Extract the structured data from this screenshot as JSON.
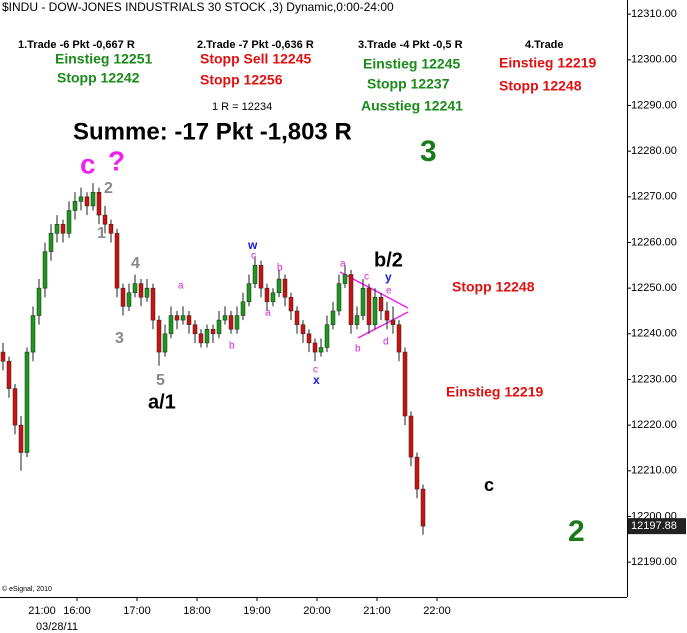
{
  "chart_data": {
    "type": "candlestick",
    "title": "$INDU - DOW-JONES INDUSTRIALS 30 STOCK ,3) Dynamic,0:00-24:00",
    "copyright": "© eSignal, 2010",
    "date_label": "03/28/11",
    "prev_day_label": "21:00",
    "up_color": "#1a9a1a",
    "down_color": "#cc1111",
    "xlim": [
      -17,
      610
    ],
    "ylim": [
      12182.8,
      12313.1
    ],
    "xticks": [
      {
        "value": 60,
        "label": "16:00"
      },
      {
        "value": 120,
        "label": "17:00"
      },
      {
        "value": 180,
        "label": "18:00"
      },
      {
        "value": 240,
        "label": "19:00"
      },
      {
        "value": 300,
        "label": "20:00"
      },
      {
        "value": 360,
        "label": "21:00"
      },
      {
        "value": 420,
        "label": "22:00"
      }
    ],
    "yticks": [
      {
        "value": 12190,
        "label": "12190.00"
      },
      {
        "value": 12200,
        "label": "12200.00"
      },
      {
        "value": 12210,
        "label": "12210.00"
      },
      {
        "value": 12220,
        "label": "12220.00"
      },
      {
        "value": 12230,
        "label": "12230.00"
      },
      {
        "value": 12240,
        "label": "12240.00"
      },
      {
        "value": 12250,
        "label": "12250.00"
      },
      {
        "value": 12260,
        "label": "12260.00"
      },
      {
        "value": 12270,
        "label": "12270.00"
      },
      {
        "value": 12280,
        "label": "12280.00"
      },
      {
        "value": 12290,
        "label": "12290.00"
      },
      {
        "value": 12300,
        "label": "12300.00"
      },
      {
        "value": 12310,
        "label": "12310.00"
      }
    ],
    "x": [
      -14,
      -8,
      -2,
      4,
      10,
      16,
      22,
      28,
      34,
      40,
      46,
      52,
      58,
      64,
      70,
      76,
      82,
      88,
      94,
      100,
      106,
      112,
      118,
      124,
      130,
      136,
      142,
      148,
      154,
      160,
      166,
      172,
      178,
      184,
      190,
      196,
      202,
      208,
      214,
      220,
      226,
      232,
      238,
      244,
      250,
      256,
      262,
      268,
      274,
      280,
      286,
      292,
      298,
      304,
      310,
      316,
      322,
      328,
      334,
      340,
      346,
      352,
      358,
      364,
      370,
      376,
      382,
      388,
      394,
      400,
      406
    ],
    "ohlc": [
      [
        12236,
        12238,
        12232,
        12234
      ],
      [
        12234,
        12235,
        12226,
        12228
      ],
      [
        12228,
        12229,
        12218,
        12220
      ],
      [
        12220,
        12222,
        12210,
        12214
      ],
      [
        12214,
        12237,
        12213,
        12236
      ],
      [
        12236,
        12246,
        12234,
        12244
      ],
      [
        12244,
        12252,
        12242,
        12250
      ],
      [
        12250,
        12260,
        12248,
        12258
      ],
      [
        12258,
        12264,
        12256,
        12262
      ],
      [
        12262,
        12266,
        12260,
        12264
      ],
      [
        12264,
        12265,
        12260,
        12262
      ],
      [
        12262,
        12269,
        12261,
        12267
      ],
      [
        12267,
        12271,
        12265,
        12269
      ],
      [
        12269,
        12272,
        12267,
        12270
      ],
      [
        12270,
        12271,
        12266,
        12268
      ],
      [
        12268,
        12273,
        12267,
        12271
      ],
      [
        12271,
        12272,
        12264,
        12266
      ],
      [
        12266,
        12268,
        12262,
        12264
      ],
      [
        12264,
        12265,
        12260,
        12262
      ],
      [
        12262,
        12263,
        12248,
        12250
      ],
      [
        12250,
        12251,
        12244,
        12246
      ],
      [
        12246,
        12251,
        12245,
        12249
      ],
      [
        12249,
        12253,
        12248,
        12251
      ],
      [
        12251,
        12252,
        12246,
        12248
      ],
      [
        12248,
        12252,
        12247,
        12250
      ],
      [
        12250,
        12251,
        12241,
        12243
      ],
      [
        12243,
        12244,
        12233,
        12236
      ],
      [
        12236,
        12242,
        12235,
        12240
      ],
      [
        12240,
        12246,
        12239,
        12244
      ],
      [
        12244,
        12245,
        12241,
        12243
      ],
      [
        12243,
        12246,
        12242,
        12244
      ],
      [
        12244,
        12245,
        12240,
        12242
      ],
      [
        12242,
        12243,
        12238,
        12240
      ],
      [
        12240,
        12241,
        12237,
        12238
      ],
      [
        12238,
        12242,
        12237,
        12241
      ],
      [
        12241,
        12242,
        12238,
        12240
      ],
      [
        12240,
        12245,
        12239,
        12243
      ],
      [
        12243,
        12246,
        12242,
        12244
      ],
      [
        12244,
        12245,
        12240,
        12241
      ],
      [
        12241,
        12246,
        12240,
        12244
      ],
      [
        12244,
        12249,
        12243,
        12247
      ],
      [
        12247,
        12253,
        12246,
        12251
      ],
      [
        12251,
        12257,
        12250,
        12255
      ],
      [
        12255,
        12256,
        12248,
        12250
      ],
      [
        12250,
        12251,
        12245,
        12247
      ],
      [
        12247,
        12250,
        12246,
        12249
      ],
      [
        12249,
        12254,
        12248,
        12252
      ],
      [
        12252,
        12253,
        12246,
        12248
      ],
      [
        12248,
        12249,
        12243,
        12245
      ],
      [
        12245,
        12246,
        12240,
        12242
      ],
      [
        12242,
        12243,
        12238,
        12240
      ],
      [
        12240,
        12241,
        12236,
        12238
      ],
      [
        12238,
        12239,
        12234,
        12236
      ],
      [
        12236,
        12239,
        12235,
        12237
      ],
      [
        12237,
        12244,
        12236,
        12242
      ],
      [
        12242,
        12247,
        12241,
        12245
      ],
      [
        12245,
        12253,
        12244,
        12251
      ],
      [
        12251,
        12255,
        12250,
        12253
      ],
      [
        12253,
        12254,
        12240,
        12242
      ],
      [
        12242,
        12246,
        12241,
        12244
      ],
      [
        12244,
        12252,
        12243,
        12250
      ],
      [
        12250,
        12251,
        12240,
        12242
      ],
      [
        12242,
        12250,
        12241,
        12248
      ],
      [
        12248,
        12249,
        12243,
        12245
      ],
      [
        12245,
        12247,
        12241,
        12243
      ],
      [
        12243,
        12246,
        12240,
        12242
      ],
      [
        12242,
        12243,
        12234,
        12236
      ],
      [
        12236,
        12237,
        12220,
        12222
      ],
      [
        12222,
        12223,
        12211,
        12213
      ],
      [
        12213,
        12214,
        12204,
        12206
      ],
      [
        12206,
        12207,
        12196,
        12197.88
      ]
    ],
    "annotations": [
      {
        "text": "1.Trade -6 Pkt -0,667 R",
        "color": "#000000"
      },
      {
        "text": "Einstieg 12251",
        "color": "#1a8a1a"
      },
      {
        "text": "Stopp 12242",
        "color": "#1a8a1a"
      },
      {
        "text": "2.Trade -7 Pkt -0,636 R",
        "color": "#000000"
      },
      {
        "text": "Stopp Sell 12245",
        "color": "#e01010"
      },
      {
        "text": "Stopp 12256",
        "color": "#e01010"
      },
      {
        "text": "1 R = 12234",
        "color": "#000000"
      },
      {
        "text": "3.Trade -4 Pkt -0,5 R",
        "color": "#000000"
      },
      {
        "text": "Einstieg 12245",
        "color": "#1a8a1a"
      },
      {
        "text": "Stopp 12237",
        "color": "#1a8a1a"
      },
      {
        "text": "Ausstieg 12241",
        "color": "#1a8a1a"
      },
      {
        "text": "4.Trade",
        "color": "#000000"
      },
      {
        "text": "Einstieg 12219",
        "color": "#e01010"
      },
      {
        "text": "Stopp 12248",
        "color": "#e01010"
      },
      {
        "text": "Summe: -17 Pkt -1,803 R",
        "color": "#000000"
      },
      {
        "text": "3",
        "color": "#1a7a1a"
      },
      {
        "text": "c",
        "color": "#ee22ee"
      },
      {
        "text": "?",
        "color": "#ee22ee"
      },
      {
        "text": "2",
        "color": "#888888"
      },
      {
        "text": "1",
        "color": "#888888"
      },
      {
        "text": "4",
        "color": "#888888"
      },
      {
        "text": "3",
        "color": "#888888"
      },
      {
        "text": "5",
        "color": "#888888"
      },
      {
        "text": "a/1",
        "color": "#000000"
      },
      {
        "text": "w",
        "color": "#1a1ae0"
      },
      {
        "text": "c",
        "color": "#dd22dd"
      },
      {
        "text": "a",
        "color": "#dd22dd"
      },
      {
        "text": "b",
        "color": "#dd22dd"
      },
      {
        "text": "b",
        "color": "#dd22dd"
      },
      {
        "text": "a",
        "color": "#dd22dd"
      },
      {
        "text": "c",
        "color": "#dd22dd"
      },
      {
        "text": "x",
        "color": "#1a1ae0"
      },
      {
        "text": "a",
        "color": "#dd22dd"
      },
      {
        "text": "c",
        "color": "#dd22dd"
      },
      {
        "text": "b/2",
        "color": "#000000"
      },
      {
        "text": "y",
        "color": "#1a1ae0"
      },
      {
        "text": "e",
        "color": "#dd22dd"
      },
      {
        "text": "b",
        "color": "#dd22dd"
      },
      {
        "text": "d",
        "color": "#dd22dd"
      },
      {
        "text": "Stopp 12248",
        "color": "#e01010"
      },
      {
        "text": "Einstieg 12219",
        "color": "#e01010"
      },
      {
        "text": "c",
        "color": "#000000"
      },
      {
        "text": "2",
        "color": "#1a7a1a"
      }
    ]
  }
}
